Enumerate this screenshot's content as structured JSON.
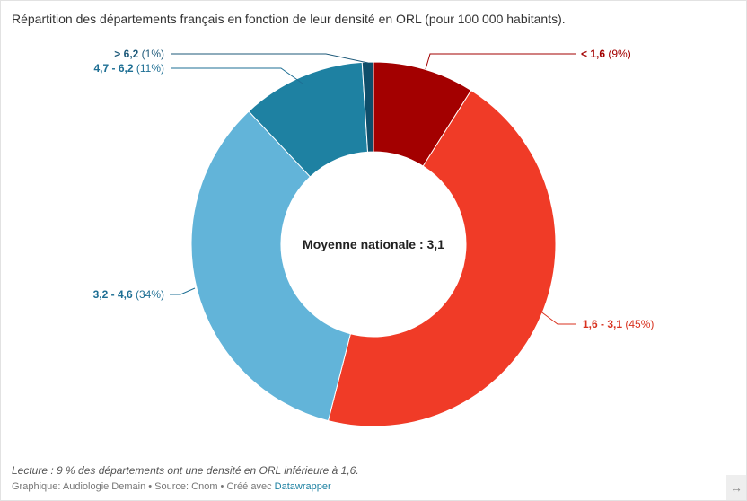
{
  "chart_data": {
    "type": "pie",
    "variant": "donut",
    "title": "Répartition des départements français en fonction de leur densité en ORL (pour 100 000 habitants).",
    "center_label": "Moyenne nationale : 3,1",
    "slices": [
      {
        "label": "< 1,6",
        "value": 9,
        "value_label": "(9%)",
        "color": "#a30000"
      },
      {
        "label": "1,6 - 3,1",
        "value": 45,
        "value_label": "(45%)",
        "color": "#f03b27"
      },
      {
        "label": "3,2 - 4,6",
        "value": 34,
        "value_label": "(34%)",
        "color": "#62b4d9"
      },
      {
        "label": "4,7 - 6,2",
        "value": 11,
        "value_label": "(11%)",
        "color": "#1e81a2"
      },
      {
        "label": "> 6,2",
        "value": 1,
        "value_label": "(1%)",
        "color": "#0e4e6a"
      }
    ],
    "label_colors": [
      "#a30000",
      "#d8321f",
      "#1e6f94",
      "#1e6f94",
      "#1e5a7a"
    ]
  },
  "notes": "Lecture : 9 % des départements ont une densité en ORL inférieure à 1,6.",
  "footer": {
    "prefix": "Graphique: Audiologie Demain • Source: Cnom • Créé avec ",
    "link": "Datawrapper"
  },
  "resize_icon": "↔"
}
